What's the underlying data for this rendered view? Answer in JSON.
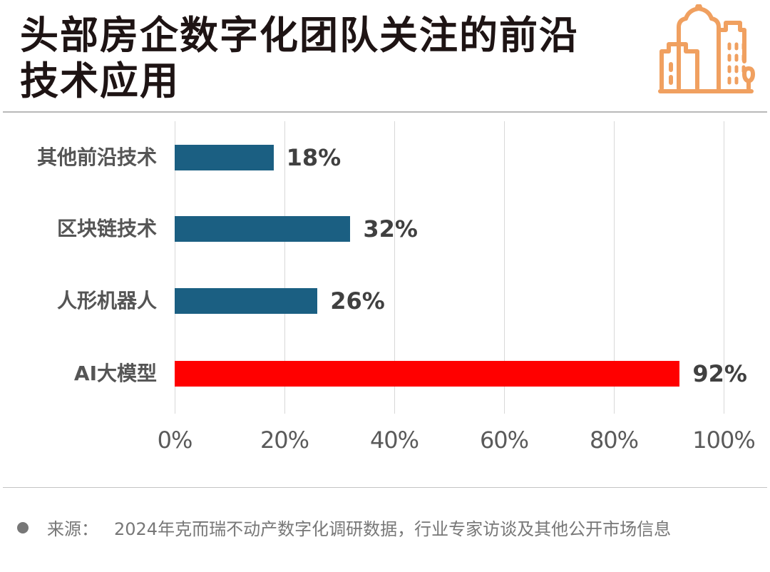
{
  "header": {
    "title_line1": "头部房企数字化团队关注的前沿",
    "title_line2": "技术应用",
    "icon": "city-buildings-icon",
    "icon_color": "#f0a060"
  },
  "footer": {
    "source_label": "来源：",
    "source_text": "2024年克而瑞不动产数字化调研数据，行业专家访谈及其他公开市场信息"
  },
  "colors": {
    "default_bar": "#1b5f82",
    "highlight_bar": "#ff0000",
    "grid": "#d8d8d8"
  },
  "chart_data": {
    "type": "bar",
    "orientation": "horizontal",
    "title": "头部房企数字化团队关注的前沿技术应用",
    "categories": [
      "其他前沿技术",
      "区块链技术",
      "人形机器人",
      "AI大模型"
    ],
    "values": [
      18,
      32,
      26,
      92
    ],
    "value_labels": [
      "18%",
      "32%",
      "26%",
      "92%"
    ],
    "highlight": "AI大模型",
    "xlabel": "",
    "ylabel": "",
    "xlim": [
      0,
      100
    ],
    "xticks": [
      "0%",
      "20%",
      "40%",
      "60%",
      "80%",
      "100%"
    ],
    "grid": true,
    "legend": null
  }
}
